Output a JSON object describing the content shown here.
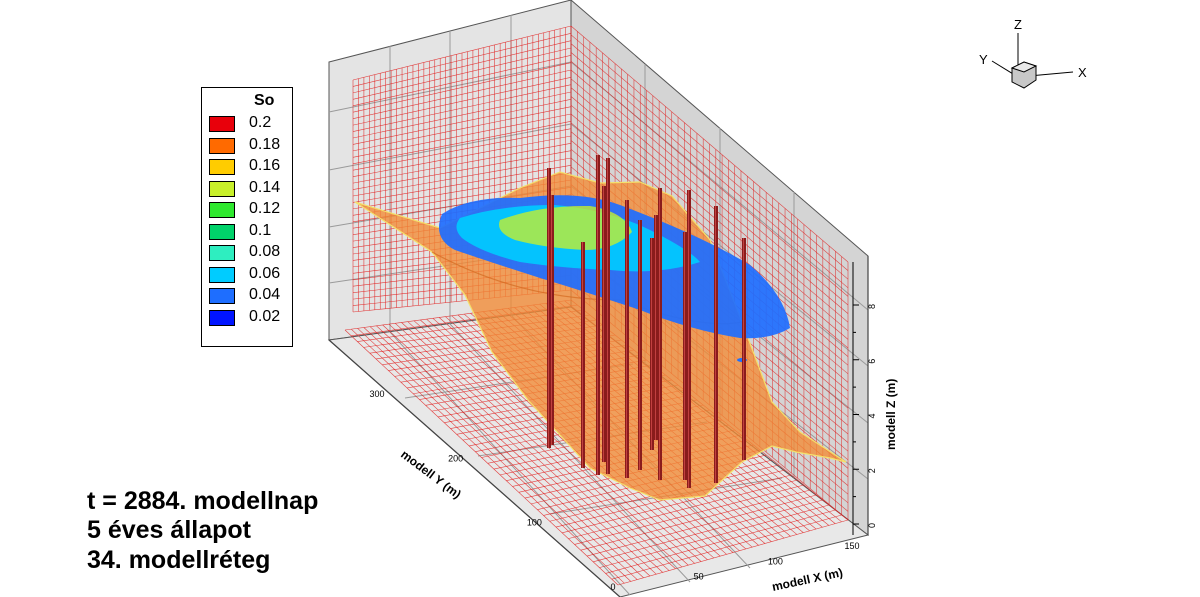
{
  "legend": {
    "title": "So",
    "levels": [
      {
        "label": "0.2",
        "color": "#e8000b"
      },
      {
        "label": "0.18",
        "color": "#ff6a00"
      },
      {
        "label": "0.16",
        "color": "#ffcc00"
      },
      {
        "label": "0.14",
        "color": "#c8f02a"
      },
      {
        "label": "0.12",
        "color": "#2ee82e"
      },
      {
        "label": "0.1",
        "color": "#00d26a"
      },
      {
        "label": "0.08",
        "color": "#2eeec0"
      },
      {
        "label": "0.06",
        "color": "#00ccff"
      },
      {
        "label": "0.04",
        "color": "#1e6eff"
      },
      {
        "label": "0.02",
        "color": "#0014ff"
      }
    ]
  },
  "annotations": {
    "time": "t = 2884. modellnap",
    "state": "5 éves állapot",
    "layer": "34. modellréteg"
  },
  "axes": {
    "x": {
      "label": "modell X (m)",
      "ticks": [
        "0",
        "50",
        "100",
        "150"
      ]
    },
    "y": {
      "label": "modell Y (m)",
      "ticks": [
        "0",
        "100",
        "200",
        "300"
      ]
    },
    "z": {
      "label": "modell Z (m)",
      "ticks": [
        "0",
        "2",
        "4",
        "6",
        "8"
      ]
    }
  },
  "orientation": {
    "x": "X",
    "y": "Y",
    "z": "Z"
  },
  "chart_data": {
    "type": "heatmap",
    "variable": "So",
    "contour_levels": [
      0.02,
      0.04,
      0.06,
      0.08,
      0.1,
      0.12,
      0.14,
      0.16,
      0.18,
      0.2
    ],
    "x_ticks": [
      0,
      50,
      100,
      150
    ],
    "y_ticks": [
      0,
      100,
      200,
      300
    ],
    "z_ticks": [
      0,
      2,
      4,
      6,
      8
    ],
    "xlabel": "modell X (m)",
    "ylabel": "modell Y (m)",
    "zlabel": "modell Z (m)",
    "well_count": 15,
    "colors": {
      "surface": "#f28a35",
      "grid": "#e02020",
      "plume_outer": "#1e6eff",
      "plume_mid": "#00ccff",
      "plume_inner": "#c8f02a",
      "well": "#8a1c1c",
      "box_face": "#e2e2e2",
      "box_edge": "#777777"
    }
  }
}
